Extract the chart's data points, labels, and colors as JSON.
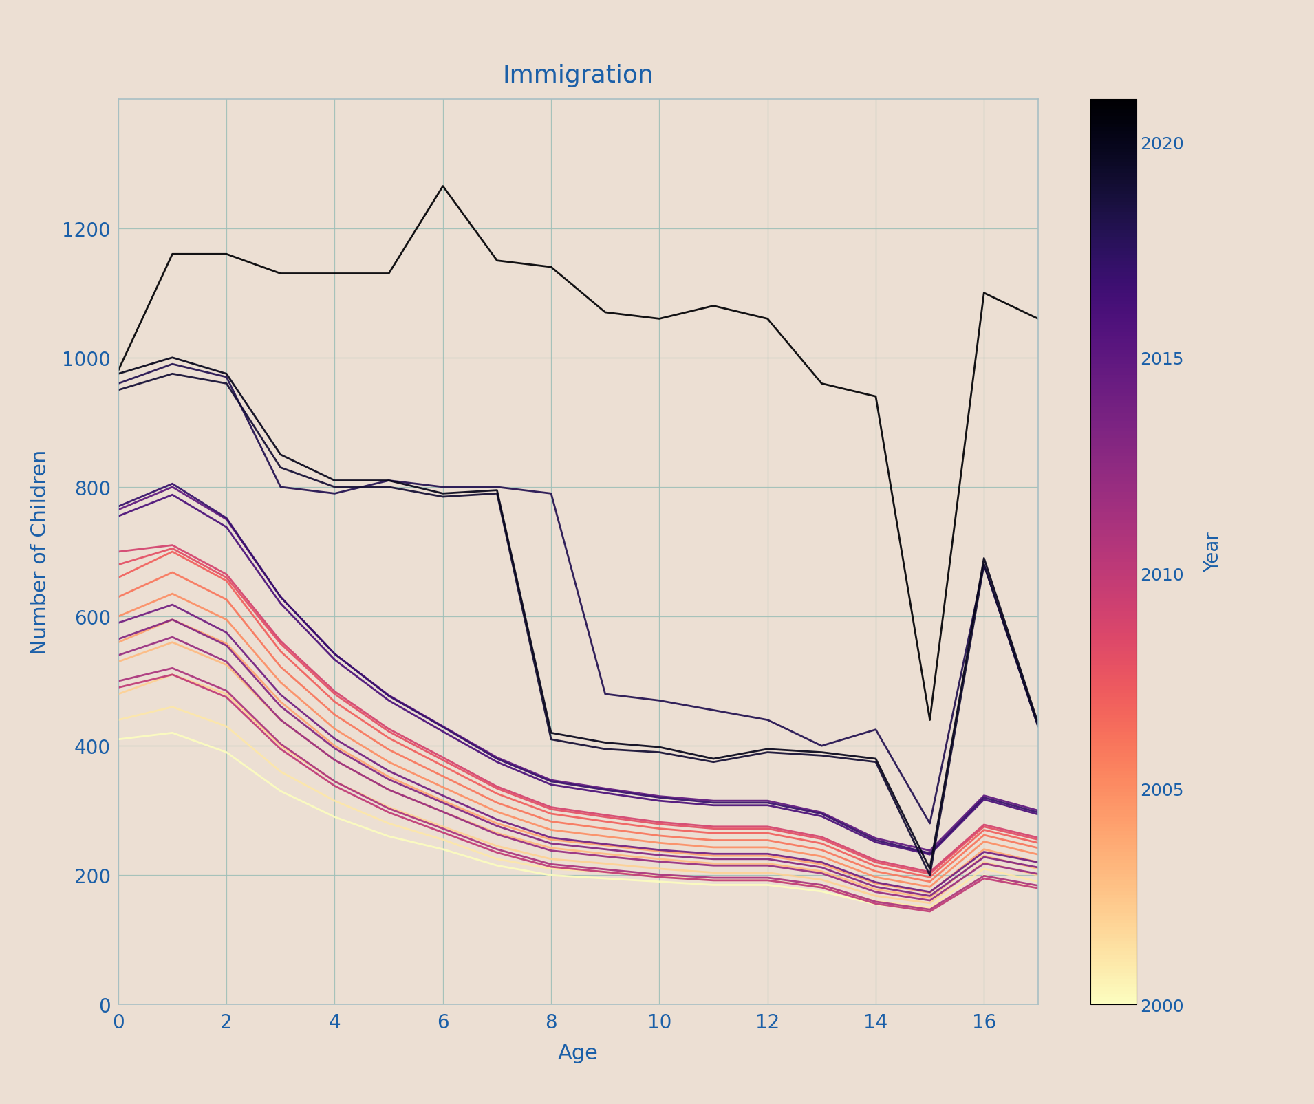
{
  "title": "Immigration",
  "xlabel": "Age",
  "ylabel": "Number of Children",
  "background_color": "#ecdfd3",
  "axes_bg_color": "#ecdfd3",
  "grid_color": "#9fbfb8",
  "text_color": "#1a5fa8",
  "spine_color": "#a8bfc4",
  "years": [
    2000,
    2001,
    2002,
    2003,
    2004,
    2005,
    2006,
    2007,
    2008,
    2009,
    2010,
    2011,
    2012,
    2013,
    2014,
    2015,
    2016,
    2017,
    2018,
    2019,
    2020,
    2021
  ],
  "ages": [
    0,
    1,
    2,
    3,
    4,
    5,
    6,
    7,
    8,
    9,
    10,
    11,
    12,
    13,
    14,
    15,
    16,
    17
  ],
  "data": {
    "2000": [
      410,
      420,
      390,
      330,
      290,
      260,
      240,
      215,
      200,
      195,
      190,
      185,
      185,
      175,
      155,
      145,
      200,
      180
    ],
    "2001": [
      440,
      460,
      430,
      360,
      315,
      280,
      255,
      225,
      210,
      205,
      198,
      192,
      192,
      182,
      160,
      150,
      210,
      190
    ],
    "2002": [
      480,
      510,
      480,
      400,
      345,
      305,
      275,
      245,
      225,
      218,
      210,
      204,
      204,
      193,
      168,
      157,
      220,
      200
    ],
    "2003": [
      530,
      560,
      525,
      440,
      378,
      332,
      298,
      265,
      242,
      233,
      225,
      218,
      218,
      206,
      178,
      165,
      230,
      210
    ],
    "2004": [
      560,
      595,
      558,
      468,
      400,
      352,
      315,
      280,
      255,
      246,
      237,
      230,
      230,
      217,
      187,
      173,
      240,
      220
    ],
    "2005": [
      600,
      635,
      595,
      498,
      426,
      375,
      336,
      298,
      270,
      260,
      250,
      243,
      243,
      229,
      197,
      182,
      252,
      232
    ],
    "2006": [
      630,
      668,
      626,
      522,
      448,
      394,
      353,
      312,
      283,
      272,
      261,
      254,
      254,
      239,
      206,
      190,
      262,
      242
    ],
    "2007": [
      660,
      700,
      655,
      546,
      468,
      412,
      369,
      326,
      295,
      283,
      272,
      265,
      265,
      249,
      214,
      197,
      270,
      250
    ],
    "2008": [
      680,
      705,
      660,
      558,
      480,
      422,
      378,
      334,
      302,
      290,
      279,
      272,
      272,
      256,
      220,
      202,
      275,
      255
    ],
    "2009": [
      700,
      710,
      665,
      562,
      484,
      426,
      382,
      337,
      305,
      293,
      282,
      275,
      275,
      259,
      223,
      205,
      278,
      258
    ],
    "2010": [
      490,
      510,
      475,
      395,
      338,
      297,
      266,
      235,
      213,
      205,
      197,
      192,
      192,
      181,
      156,
      144,
      195,
      180
    ],
    "2011": [
      500,
      520,
      485,
      403,
      345,
      303,
      272,
      240,
      217,
      209,
      201,
      196,
      196,
      185,
      159,
      147,
      199,
      184
    ],
    "2012": [
      540,
      568,
      530,
      440,
      378,
      332,
      298,
      263,
      238,
      229,
      221,
      215,
      215,
      203,
      174,
      161,
      218,
      202
    ],
    "2013": [
      565,
      595,
      555,
      461,
      396,
      348,
      312,
      276,
      249,
      240,
      231,
      225,
      225,
      212,
      182,
      168,
      228,
      212
    ],
    "2014": [
      590,
      618,
      575,
      479,
      411,
      361,
      323,
      286,
      258,
      248,
      239,
      233,
      233,
      220,
      189,
      174,
      236,
      220
    ],
    "2015": [
      765,
      800,
      750,
      630,
      542,
      478,
      430,
      382,
      347,
      334,
      322,
      315,
      315,
      297,
      257,
      238,
      323,
      300
    ],
    "2016": [
      755,
      788,
      738,
      620,
      533,
      470,
      422,
      375,
      340,
      327,
      315,
      308,
      308,
      291,
      251,
      232,
      317,
      294
    ],
    "2017": [
      770,
      805,
      752,
      630,
      542,
      477,
      429,
      380,
      345,
      332,
      320,
      312,
      312,
      295,
      254,
      234,
      320,
      297
    ],
    "2018": [
      960,
      990,
      970,
      800,
      790,
      810,
      800,
      800,
      790,
      480,
      470,
      455,
      440,
      400,
      425,
      280,
      680,
      430
    ],
    "2019": [
      950,
      975,
      960,
      830,
      800,
      800,
      785,
      790,
      410,
      395,
      390,
      375,
      390,
      385,
      375,
      200,
      680,
      430
    ],
    "2020": [
      975,
      1000,
      975,
      850,
      810,
      810,
      790,
      795,
      420,
      405,
      398,
      380,
      395,
      390,
      380,
      210,
      690,
      435
    ],
    "2021": [
      980,
      1160,
      1160,
      1130,
      1130,
      1130,
      1265,
      1150,
      1140,
      1070,
      1060,
      1080,
      1060,
      960,
      940,
      440,
      1100,
      1060
    ]
  },
  "cmap_name": "plasma",
  "year_min": 2000,
  "year_max": 2021,
  "ylim": [
    0,
    1400
  ],
  "xlim": [
    0,
    17
  ],
  "colorbar_ticks": [
    2000,
    2005,
    2010,
    2015,
    2020
  ],
  "line_width": 2.0,
  "title_fontsize": 26,
  "axis_label_fontsize": 22,
  "tick_fontsize": 20,
  "colorbar_label_fontsize": 20,
  "colorbar_tick_fontsize": 18
}
